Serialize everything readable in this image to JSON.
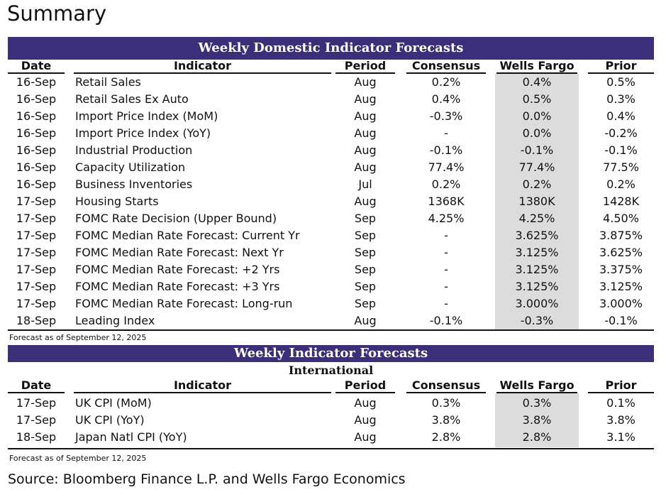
{
  "page_title": "Summary",
  "source": "Source: Bloomberg Finance L.P. and Wells Fargo Economics",
  "columns": {
    "date": "Date",
    "indicator": "Indicator",
    "period": "Period",
    "consensus": "Consensus",
    "wells_fargo": "Wells Fargo",
    "prior": "Prior"
  },
  "domestic": {
    "title": "Weekly Domestic Indicator Forecasts",
    "footnote": "Forecast as of September 12, 2025",
    "rows": [
      {
        "date": "16-Sep",
        "indicator": "Retail Sales",
        "period": "Aug",
        "consensus": "0.2%",
        "wells_fargo": "0.4%",
        "prior": "0.5%"
      },
      {
        "date": "16-Sep",
        "indicator": "Retail Sales Ex Auto",
        "period": "Aug",
        "consensus": "0.4%",
        "wells_fargo": "0.5%",
        "prior": "0.3%"
      },
      {
        "date": "16-Sep",
        "indicator": "Import Price Index (MoM)",
        "period": "Aug",
        "consensus": "-0.3%",
        "wells_fargo": "0.0%",
        "prior": "0.4%"
      },
      {
        "date": "16-Sep",
        "indicator": "Import Price Index (YoY)",
        "period": "Aug",
        "consensus": "-",
        "wells_fargo": "0.0%",
        "prior": "-0.2%"
      },
      {
        "date": "16-Sep",
        "indicator": "Industrial Production",
        "period": "Aug",
        "consensus": "-0.1%",
        "wells_fargo": "-0.1%",
        "prior": "-0.1%"
      },
      {
        "date": "16-Sep",
        "indicator": "Capacity Utilization",
        "period": "Aug",
        "consensus": "77.4%",
        "wells_fargo": "77.4%",
        "prior": "77.5%"
      },
      {
        "date": "16-Sep",
        "indicator": "Business Inventories",
        "period": "Jul",
        "consensus": "0.2%",
        "wells_fargo": "0.2%",
        "prior": "0.2%"
      },
      {
        "date": "17-Sep",
        "indicator": "Housing Starts",
        "period": "Aug",
        "consensus": "1368K",
        "wells_fargo": "1380K",
        "prior": "1428K"
      },
      {
        "date": "17-Sep",
        "indicator": "FOMC Rate Decision (Upper Bound)",
        "period": "Sep",
        "consensus": "4.25%",
        "wells_fargo": "4.25%",
        "prior": "4.50%"
      },
      {
        "date": "17-Sep",
        "indicator": "FOMC Median Rate Forecast: Current Yr",
        "period": "Sep",
        "consensus": "-",
        "wells_fargo": "3.625%",
        "prior": "3.875%"
      },
      {
        "date": "17-Sep",
        "indicator": "FOMC Median Rate Forecast: Next Yr",
        "period": "Sep",
        "consensus": "-",
        "wells_fargo": "3.125%",
        "prior": "3.625%"
      },
      {
        "date": "17-Sep",
        "indicator": "FOMC Median Rate Forecast: +2 Yrs",
        "period": "Sep",
        "consensus": "-",
        "wells_fargo": "3.125%",
        "prior": "3.375%"
      },
      {
        "date": "17-Sep",
        "indicator": "FOMC Median Rate Forecast: +3 Yrs",
        "period": "Sep",
        "consensus": "-",
        "wells_fargo": "3.125%",
        "prior": "3.125%"
      },
      {
        "date": "17-Sep",
        "indicator": "FOMC Median Rate Forecast: Long-run",
        "period": "Sep",
        "consensus": "-",
        "wells_fargo": "3.000%",
        "prior": "3.000%"
      },
      {
        "date": "18-Sep",
        "indicator": "Leading Index",
        "period": "Aug",
        "consensus": "-0.1%",
        "wells_fargo": "-0.3%",
        "prior": "-0.1%"
      }
    ]
  },
  "international": {
    "title": "Weekly Indicator Forecasts",
    "subtitle": "International",
    "footnote": "Forecast as of September 12, 2025",
    "rows": [
      {
        "date": "17-Sep",
        "indicator": "UK CPI (MoM)",
        "period": "Aug",
        "consensus": "0.3%",
        "wells_fargo": "0.3%",
        "prior": "0.1%"
      },
      {
        "date": "17-Sep",
        "indicator": "UK CPI (YoY)",
        "period": "Aug",
        "consensus": "3.8%",
        "wells_fargo": "3.8%",
        "prior": "3.8%"
      },
      {
        "date": "18-Sep",
        "indicator": "Japan Natl CPI (YoY)",
        "period": "Aug",
        "consensus": "2.8%",
        "wells_fargo": "2.8%",
        "prior": "3.1%"
      }
    ]
  }
}
